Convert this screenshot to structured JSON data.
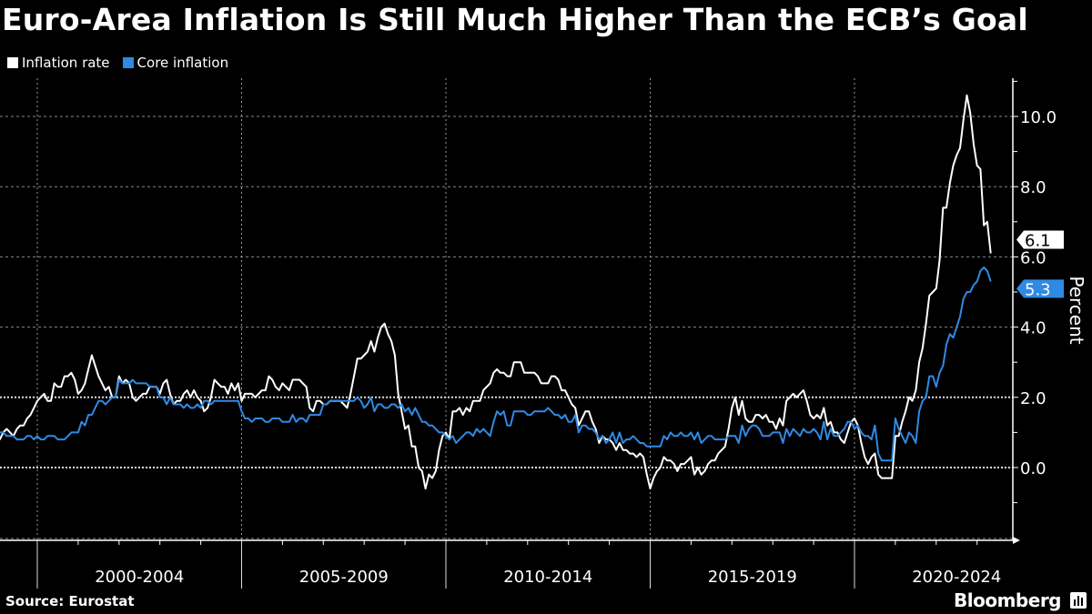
{
  "title": "Euro-Area Inflation Is Still Much Higher Than the ECB’s Goal",
  "source": "Source:  Eurostat",
  "brand": "Bloomberg",
  "brand_icon": "bloomberg-chart-icon",
  "colors": {
    "inflation": "#ffffff",
    "core": "#2f8ae5",
    "background": "#000000"
  },
  "chart_data": {
    "type": "line",
    "title": "Euro-Area Inflation Is Still Much Higher Than the ECB’s Goal",
    "ylabel": "Percent",
    "xlabel": "",
    "ylim": [
      -2.0,
      11.2
    ],
    "yticks": [
      "0.0",
      "2.0",
      "4.0",
      "6.0",
      "8.0",
      "10.0"
    ],
    "x_start": "1999-01",
    "x_frequency": "monthly",
    "x_period_labels": [
      "2000-2004",
      "2005-2009",
      "2010-2014",
      "2015-2019",
      "2020-2024"
    ],
    "grid": true,
    "reference_lines": [
      0,
      2
    ],
    "legend_placement": "top-left",
    "series": [
      {
        "name": "Inflation rate",
        "last_label": "6.1",
        "values": [
          0.8,
          0.8,
          1.0,
          1.1,
          1.0,
          0.9,
          1.1,
          1.2,
          1.2,
          1.4,
          1.5,
          1.7,
          1.9,
          2.0,
          2.1,
          1.9,
          1.9,
          2.4,
          2.3,
          2.3,
          2.6,
          2.6,
          2.7,
          2.5,
          2.1,
          2.2,
          2.4,
          2.8,
          3.2,
          2.9,
          2.6,
          2.4,
          2.2,
          2.3,
          2.0,
          2.0,
          2.6,
          2.4,
          2.5,
          2.4,
          2.0,
          1.9,
          2.0,
          2.1,
          2.1,
          2.3,
          2.3,
          2.3,
          2.1,
          2.4,
          2.5,
          2.1,
          1.8,
          1.9,
          1.9,
          2.1,
          2.2,
          2.0,
          2.2,
          2.0,
          1.9,
          1.6,
          1.7,
          2.0,
          2.5,
          2.4,
          2.3,
          2.3,
          2.1,
          2.4,
          2.2,
          2.4,
          1.9,
          2.1,
          2.1,
          2.1,
          2.0,
          2.1,
          2.2,
          2.2,
          2.6,
          2.5,
          2.3,
          2.2,
          2.4,
          2.3,
          2.2,
          2.5,
          2.5,
          2.5,
          2.4,
          2.3,
          1.7,
          1.6,
          1.9,
          1.9,
          1.8,
          1.8,
          1.9,
          1.9,
          1.9,
          1.9,
          1.8,
          1.7,
          2.1,
          2.6,
          3.1,
          3.1,
          3.2,
          3.3,
          3.6,
          3.3,
          3.7,
          4.0,
          4.1,
          3.8,
          3.6,
          3.2,
          2.1,
          1.6,
          1.1,
          1.2,
          0.6,
          0.6,
          0.0,
          -0.1,
          -0.6,
          -0.2,
          -0.3,
          -0.1,
          0.5,
          0.9,
          1.0,
          0.8,
          1.6,
          1.6,
          1.7,
          1.5,
          1.7,
          1.6,
          1.9,
          1.9,
          1.9,
          2.2,
          2.3,
          2.4,
          2.7,
          2.8,
          2.7,
          2.7,
          2.6,
          2.6,
          3.0,
          3.0,
          3.0,
          2.7,
          2.7,
          2.7,
          2.7,
          2.6,
          2.4,
          2.4,
          2.4,
          2.6,
          2.6,
          2.5,
          2.2,
          2.2,
          2.0,
          1.8,
          1.7,
          1.2,
          1.4,
          1.6,
          1.6,
          1.3,
          1.1,
          0.7,
          0.9,
          0.8,
          0.8,
          0.7,
          0.5,
          0.7,
          0.5,
          0.5,
          0.4,
          0.4,
          0.3,
          0.4,
          0.3,
          -0.2,
          -0.6,
          -0.3,
          -0.1,
          0.0,
          0.3,
          0.2,
          0.2,
          0.1,
          -0.1,
          0.1,
          0.1,
          0.2,
          0.3,
          -0.2,
          0.0,
          -0.2,
          -0.1,
          0.1,
          0.2,
          0.2,
          0.4,
          0.5,
          0.6,
          1.1,
          1.7,
          2.0,
          1.5,
          1.9,
          1.4,
          1.3,
          1.3,
          1.5,
          1.5,
          1.4,
          1.5,
          1.3,
          1.3,
          1.1,
          1.4,
          1.2,
          1.9,
          2.0,
          2.1,
          2.0,
          2.1,
          2.2,
          1.9,
          1.5,
          1.4,
          1.5,
          1.4,
          1.7,
          1.2,
          1.3,
          1.0,
          1.0,
          0.8,
          0.7,
          1.0,
          1.3,
          1.4,
          1.2,
          0.7,
          0.3,
          0.1,
          0.3,
          0.4,
          -0.2,
          -0.3,
          -0.3,
          -0.3,
          -0.3,
          0.9,
          0.9,
          1.3,
          1.6,
          2.0,
          1.9,
          2.2,
          3.0,
          3.4,
          4.1,
          4.9,
          5.0,
          5.1,
          5.9,
          7.4,
          7.4,
          8.1,
          8.6,
          8.9,
          9.1,
          9.9,
          10.6,
          10.1,
          9.2,
          8.6,
          8.5,
          6.9,
          7.0,
          6.1
        ]
      },
      {
        "name": "Core inflation",
        "last_label": "5.3",
        "values": [
          1.1,
          1.0,
          1.0,
          0.9,
          0.9,
          0.9,
          0.8,
          0.8,
          0.8,
          0.9,
          0.9,
          0.8,
          0.9,
          0.8,
          0.8,
          0.9,
          0.9,
          0.9,
          0.8,
          0.8,
          0.8,
          0.9,
          1.0,
          1.0,
          1.0,
          1.3,
          1.2,
          1.5,
          1.5,
          1.7,
          1.9,
          1.9,
          1.8,
          1.9,
          2.0,
          2.0,
          2.5,
          2.4,
          2.4,
          2.4,
          2.5,
          2.4,
          2.4,
          2.4,
          2.4,
          2.3,
          2.3,
          2.3,
          2.0,
          2.0,
          1.8,
          2.0,
          1.8,
          1.8,
          1.8,
          1.7,
          1.8,
          1.7,
          1.7,
          1.8,
          1.7,
          1.9,
          1.9,
          1.8,
          1.9,
          1.9,
          1.9,
          1.9,
          1.9,
          1.9,
          1.9,
          1.9,
          1.6,
          1.4,
          1.4,
          1.3,
          1.4,
          1.4,
          1.4,
          1.3,
          1.3,
          1.4,
          1.4,
          1.4,
          1.3,
          1.3,
          1.3,
          1.5,
          1.3,
          1.4,
          1.4,
          1.3,
          1.5,
          1.5,
          1.5,
          1.5,
          1.8,
          1.8,
          1.9,
          1.9,
          1.9,
          1.9,
          1.9,
          1.9,
          1.9,
          1.9,
          2.0,
          1.9,
          1.7,
          1.8,
          2.0,
          1.6,
          1.8,
          1.8,
          1.7,
          1.7,
          1.8,
          1.8,
          1.7,
          1.8,
          1.6,
          1.7,
          1.5,
          1.7,
          1.5,
          1.3,
          1.3,
          1.2,
          1.2,
          1.1,
          1.0,
          1.0,
          0.9,
          0.8,
          0.9,
          0.7,
          0.8,
          0.9,
          1.0,
          1.0,
          0.9,
          1.1,
          1.0,
          1.1,
          1.0,
          0.9,
          1.3,
          1.6,
          1.5,
          1.6,
          1.2,
          1.2,
          1.6,
          1.6,
          1.6,
          1.6,
          1.5,
          1.5,
          1.6,
          1.6,
          1.6,
          1.6,
          1.7,
          1.6,
          1.5,
          1.5,
          1.4,
          1.5,
          1.3,
          1.3,
          1.5,
          1.0,
          1.2,
          1.2,
          1.1,
          1.1,
          1.0,
          0.8,
          0.9,
          0.7,
          0.8,
          1.0,
          0.7,
          1.0,
          0.7,
          0.8,
          0.8,
          0.9,
          0.8,
          0.7,
          0.7,
          0.6,
          0.6,
          0.6,
          0.6,
          0.6,
          0.9,
          0.8,
          1.0,
          0.9,
          0.9,
          1.0,
          0.9,
          0.9,
          1.0,
          0.8,
          1.0,
          0.7,
          0.8,
          0.9,
          0.9,
          0.8,
          0.8,
          0.8,
          0.8,
          0.9,
          0.9,
          0.9,
          0.7,
          1.2,
          0.9,
          1.1,
          1.2,
          1.2,
          1.1,
          0.9,
          0.9,
          0.9,
          1.0,
          1.0,
          1.0,
          0.7,
          1.1,
          0.9,
          1.1,
          1.0,
          0.9,
          1.1,
          1.0,
          1.0,
          1.1,
          1.0,
          0.8,
          1.3,
          0.8,
          1.1,
          0.9,
          0.9,
          1.0,
          1.1,
          1.3,
          1.3,
          1.1,
          1.2,
          1.0,
          0.9,
          0.9,
          0.8,
          1.2,
          0.4,
          0.2,
          0.2,
          0.2,
          0.2,
          1.4,
          1.1,
          0.9,
          0.7,
          1.0,
          0.9,
          0.7,
          1.6,
          1.9,
          2.0,
          2.6,
          2.6,
          2.3,
          2.7,
          2.9,
          3.5,
          3.8,
          3.7,
          4.0,
          4.3,
          4.8,
          5.0,
          5.0,
          5.2,
          5.3,
          5.6,
          5.7,
          5.6,
          5.3
        ]
      }
    ]
  }
}
